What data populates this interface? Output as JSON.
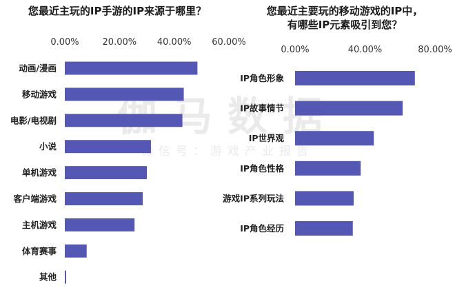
{
  "watermark": {
    "main": "伽马数据",
    "sub": "微信号：游戏产业报告"
  },
  "chart_data": [
    {
      "type": "bar",
      "orientation": "horizontal",
      "title": "您最近主玩的IP手游的IP来源于哪里？",
      "categories": [
        "动画/漫画",
        "移动游戏",
        "电影/电视剧",
        "小说",
        "单机游戏",
        "客户端游戏",
        "主机游戏",
        "体育赛事",
        "其他"
      ],
      "values": [
        48.5,
        43.5,
        43.0,
        31.5,
        30.0,
        28.5,
        25.5,
        8.0,
        0.5
      ],
      "xlim": [
        0,
        60
      ],
      "xticks": [
        "0.00%",
        "20.00%",
        "40.00%",
        "60.00%"
      ],
      "tick_values": [
        0,
        20,
        40,
        60
      ],
      "color": "#5457b4"
    },
    {
      "type": "bar",
      "orientation": "horizontal",
      "title": "您最近主要玩的移动游戏的IP中，\n有哪些IP元素吸引到您？",
      "categories": [
        "IP角色形象",
        "IP故事情节",
        "IP世界观",
        "IP角色性格",
        "游戏IP系列玩法",
        "IP角色经历"
      ],
      "values": [
        68.5,
        61.5,
        45.0,
        37.5,
        33.5,
        33.0
      ],
      "xlim": [
        0,
        80
      ],
      "xticks": [
        "0.00%",
        "40.00%",
        "80.00%"
      ],
      "tick_values": [
        0,
        40,
        80
      ],
      "color": "#5457b4"
    }
  ]
}
